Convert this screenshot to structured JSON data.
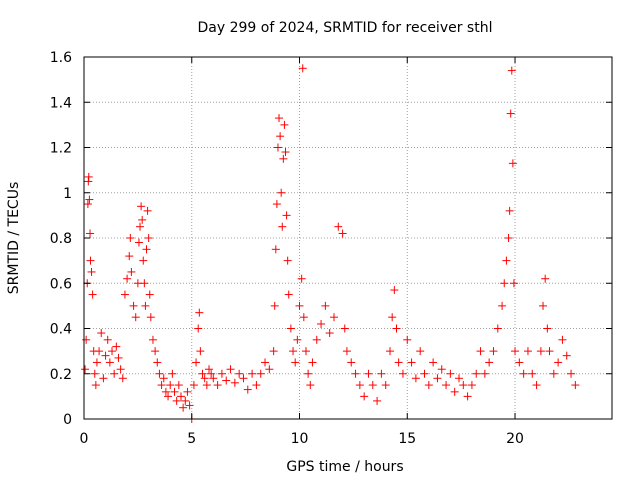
{
  "chart_data": {
    "type": "scatter",
    "title": "Day 299 of 2024, SRMTID for receiver sthl",
    "xlabel": "GPS time / hours",
    "ylabel": "SRMTID / TECUs",
    "xlim": [
      0,
      24.5
    ],
    "ylim": [
      0,
      1.6
    ],
    "xticks": [
      0,
      5,
      10,
      15,
      20
    ],
    "xtick_labels": [
      "0",
      "5",
      "10",
      "15",
      "20"
    ],
    "yticks": [
      0,
      0.2,
      0.4,
      0.6,
      0.8,
      1,
      1.2,
      1.4,
      1.6
    ],
    "ytick_labels": [
      "0",
      "0.2",
      "0.4",
      "0.6",
      "0.8",
      "1",
      "1.2",
      "1.4",
      "1.6"
    ],
    "grid": true,
    "marker": "+",
    "marker_color": "#ff0000",
    "series": [
      {
        "name": "SRMTID",
        "points": [
          [
            0.05,
            0.22
          ],
          [
            0.1,
            0.35
          ],
          [
            0.15,
            0.6
          ],
          [
            0.18,
            0.95
          ],
          [
            0.2,
            1.05
          ],
          [
            0.22,
            1.07
          ],
          [
            0.25,
            0.97
          ],
          [
            0.28,
            0.82
          ],
          [
            0.3,
            0.7
          ],
          [
            0.35,
            0.65
          ],
          [
            0.4,
            0.55
          ],
          [
            0.45,
            0.3
          ],
          [
            0.5,
            0.2
          ],
          [
            0.55,
            0.15
          ],
          [
            0.6,
            0.25
          ],
          [
            0.7,
            0.3
          ],
          [
            0.8,
            0.38
          ],
          [
            0.9,
            0.18
          ],
          [
            1.0,
            0.28
          ],
          [
            1.1,
            0.35
          ],
          [
            1.2,
            0.25
          ],
          [
            1.3,
            0.3
          ],
          [
            1.4,
            0.2
          ],
          [
            1.5,
            0.32
          ],
          [
            1.6,
            0.27
          ],
          [
            1.7,
            0.22
          ],
          [
            1.8,
            0.18
          ],
          [
            1.9,
            0.55
          ],
          [
            2.0,
            0.62
          ],
          [
            2.1,
            0.72
          ],
          [
            2.15,
            0.8
          ],
          [
            2.2,
            0.65
          ],
          [
            2.3,
            0.5
          ],
          [
            2.4,
            0.45
          ],
          [
            2.5,
            0.6
          ],
          [
            2.55,
            0.78
          ],
          [
            2.6,
            0.85
          ],
          [
            2.65,
            0.94
          ],
          [
            2.7,
            0.88
          ],
          [
            2.75,
            0.7
          ],
          [
            2.8,
            0.6
          ],
          [
            2.85,
            0.5
          ],
          [
            2.9,
            0.75
          ],
          [
            2.95,
            0.92
          ],
          [
            3.0,
            0.8
          ],
          [
            3.05,
            0.55
          ],
          [
            3.1,
            0.45
          ],
          [
            3.2,
            0.35
          ],
          [
            3.3,
            0.3
          ],
          [
            3.4,
            0.25
          ],
          [
            3.5,
            0.2
          ],
          [
            3.6,
            0.15
          ],
          [
            3.7,
            0.18
          ],
          [
            3.8,
            0.12
          ],
          [
            3.9,
            0.1
          ],
          [
            4.0,
            0.15
          ],
          [
            4.1,
            0.2
          ],
          [
            4.2,
            0.12
          ],
          [
            4.3,
            0.08
          ],
          [
            4.4,
            0.15
          ],
          [
            4.5,
            0.1
          ],
          [
            4.6,
            0.05
          ],
          [
            4.7,
            0.08
          ],
          [
            4.8,
            0.12
          ],
          [
            4.9,
            0.06
          ],
          [
            5.0,
            0.0
          ],
          [
            5.1,
            0.15
          ],
          [
            5.2,
            0.25
          ],
          [
            5.3,
            0.4
          ],
          [
            5.35,
            0.47
          ],
          [
            5.4,
            0.3
          ],
          [
            5.5,
            0.2
          ],
          [
            5.6,
            0.18
          ],
          [
            5.7,
            0.15
          ],
          [
            5.8,
            0.22
          ],
          [
            5.9,
            0.2
          ],
          [
            6.0,
            0.18
          ],
          [
            6.2,
            0.15
          ],
          [
            6.4,
            0.2
          ],
          [
            6.6,
            0.17
          ],
          [
            6.8,
            0.22
          ],
          [
            7.0,
            0.16
          ],
          [
            7.2,
            0.2
          ],
          [
            7.4,
            0.18
          ],
          [
            7.6,
            0.13
          ],
          [
            7.8,
            0.2
          ],
          [
            8.0,
            0.15
          ],
          [
            8.2,
            0.2
          ],
          [
            8.4,
            0.25
          ],
          [
            8.6,
            0.22
          ],
          [
            8.8,
            0.3
          ],
          [
            8.85,
            0.5
          ],
          [
            8.9,
            0.75
          ],
          [
            8.95,
            0.95
          ],
          [
            9.0,
            1.2
          ],
          [
            9.05,
            1.33
          ],
          [
            9.1,
            1.25
          ],
          [
            9.15,
            1.0
          ],
          [
            9.2,
            0.85
          ],
          [
            9.25,
            1.15
          ],
          [
            9.3,
            1.3
          ],
          [
            9.35,
            1.18
          ],
          [
            9.4,
            0.9
          ],
          [
            9.45,
            0.7
          ],
          [
            9.5,
            0.55
          ],
          [
            9.6,
            0.4
          ],
          [
            9.7,
            0.3
          ],
          [
            9.8,
            0.25
          ],
          [
            9.9,
            0.35
          ],
          [
            10.0,
            0.5
          ],
          [
            10.1,
            0.62
          ],
          [
            10.15,
            1.55
          ],
          [
            10.2,
            0.45
          ],
          [
            10.3,
            0.3
          ],
          [
            10.4,
            0.2
          ],
          [
            10.5,
            0.15
          ],
          [
            10.6,
            0.25
          ],
          [
            10.8,
            0.35
          ],
          [
            11.0,
            0.42
          ],
          [
            11.2,
            0.5
          ],
          [
            11.4,
            0.38
          ],
          [
            11.6,
            0.45
          ],
          [
            11.8,
            0.85
          ],
          [
            12.0,
            0.82
          ],
          [
            12.1,
            0.4
          ],
          [
            12.2,
            0.3
          ],
          [
            12.4,
            0.25
          ],
          [
            12.6,
            0.2
          ],
          [
            12.8,
            0.15
          ],
          [
            13.0,
            0.1
          ],
          [
            13.2,
            0.2
          ],
          [
            13.4,
            0.15
          ],
          [
            13.6,
            0.08
          ],
          [
            13.8,
            0.2
          ],
          [
            14.0,
            0.15
          ],
          [
            14.2,
            0.3
          ],
          [
            14.3,
            0.45
          ],
          [
            14.4,
            0.57
          ],
          [
            14.5,
            0.4
          ],
          [
            14.6,
            0.25
          ],
          [
            14.8,
            0.2
          ],
          [
            15.0,
            0.35
          ],
          [
            15.2,
            0.25
          ],
          [
            15.4,
            0.18
          ],
          [
            15.6,
            0.3
          ],
          [
            15.8,
            0.2
          ],
          [
            16.0,
            0.15
          ],
          [
            16.2,
            0.25
          ],
          [
            16.4,
            0.18
          ],
          [
            16.6,
            0.22
          ],
          [
            16.8,
            0.15
          ],
          [
            17.0,
            0.2
          ],
          [
            17.2,
            0.12
          ],
          [
            17.4,
            0.18
          ],
          [
            17.6,
            0.15
          ],
          [
            17.8,
            0.1
          ],
          [
            18.0,
            0.15
          ],
          [
            18.2,
            0.2
          ],
          [
            18.4,
            0.3
          ],
          [
            18.6,
            0.2
          ],
          [
            18.8,
            0.25
          ],
          [
            19.0,
            0.3
          ],
          [
            19.2,
            0.4
          ],
          [
            19.4,
            0.5
          ],
          [
            19.5,
            0.6
          ],
          [
            19.6,
            0.7
          ],
          [
            19.7,
            0.8
          ],
          [
            19.75,
            0.92
          ],
          [
            19.8,
            1.35
          ],
          [
            19.85,
            1.54
          ],
          [
            19.9,
            1.13
          ],
          [
            19.95,
            0.6
          ],
          [
            20.0,
            0.3
          ],
          [
            20.2,
            0.25
          ],
          [
            20.4,
            0.2
          ],
          [
            20.6,
            0.3
          ],
          [
            20.8,
            0.2
          ],
          [
            21.0,
            0.15
          ],
          [
            21.2,
            0.3
          ],
          [
            21.3,
            0.5
          ],
          [
            21.4,
            0.62
          ],
          [
            21.5,
            0.4
          ],
          [
            21.6,
            0.3
          ],
          [
            21.8,
            0.2
          ],
          [
            22.0,
            0.25
          ],
          [
            22.2,
            0.35
          ],
          [
            22.4,
            0.28
          ],
          [
            22.6,
            0.2
          ],
          [
            22.8,
            0.15
          ]
        ]
      }
    ]
  }
}
